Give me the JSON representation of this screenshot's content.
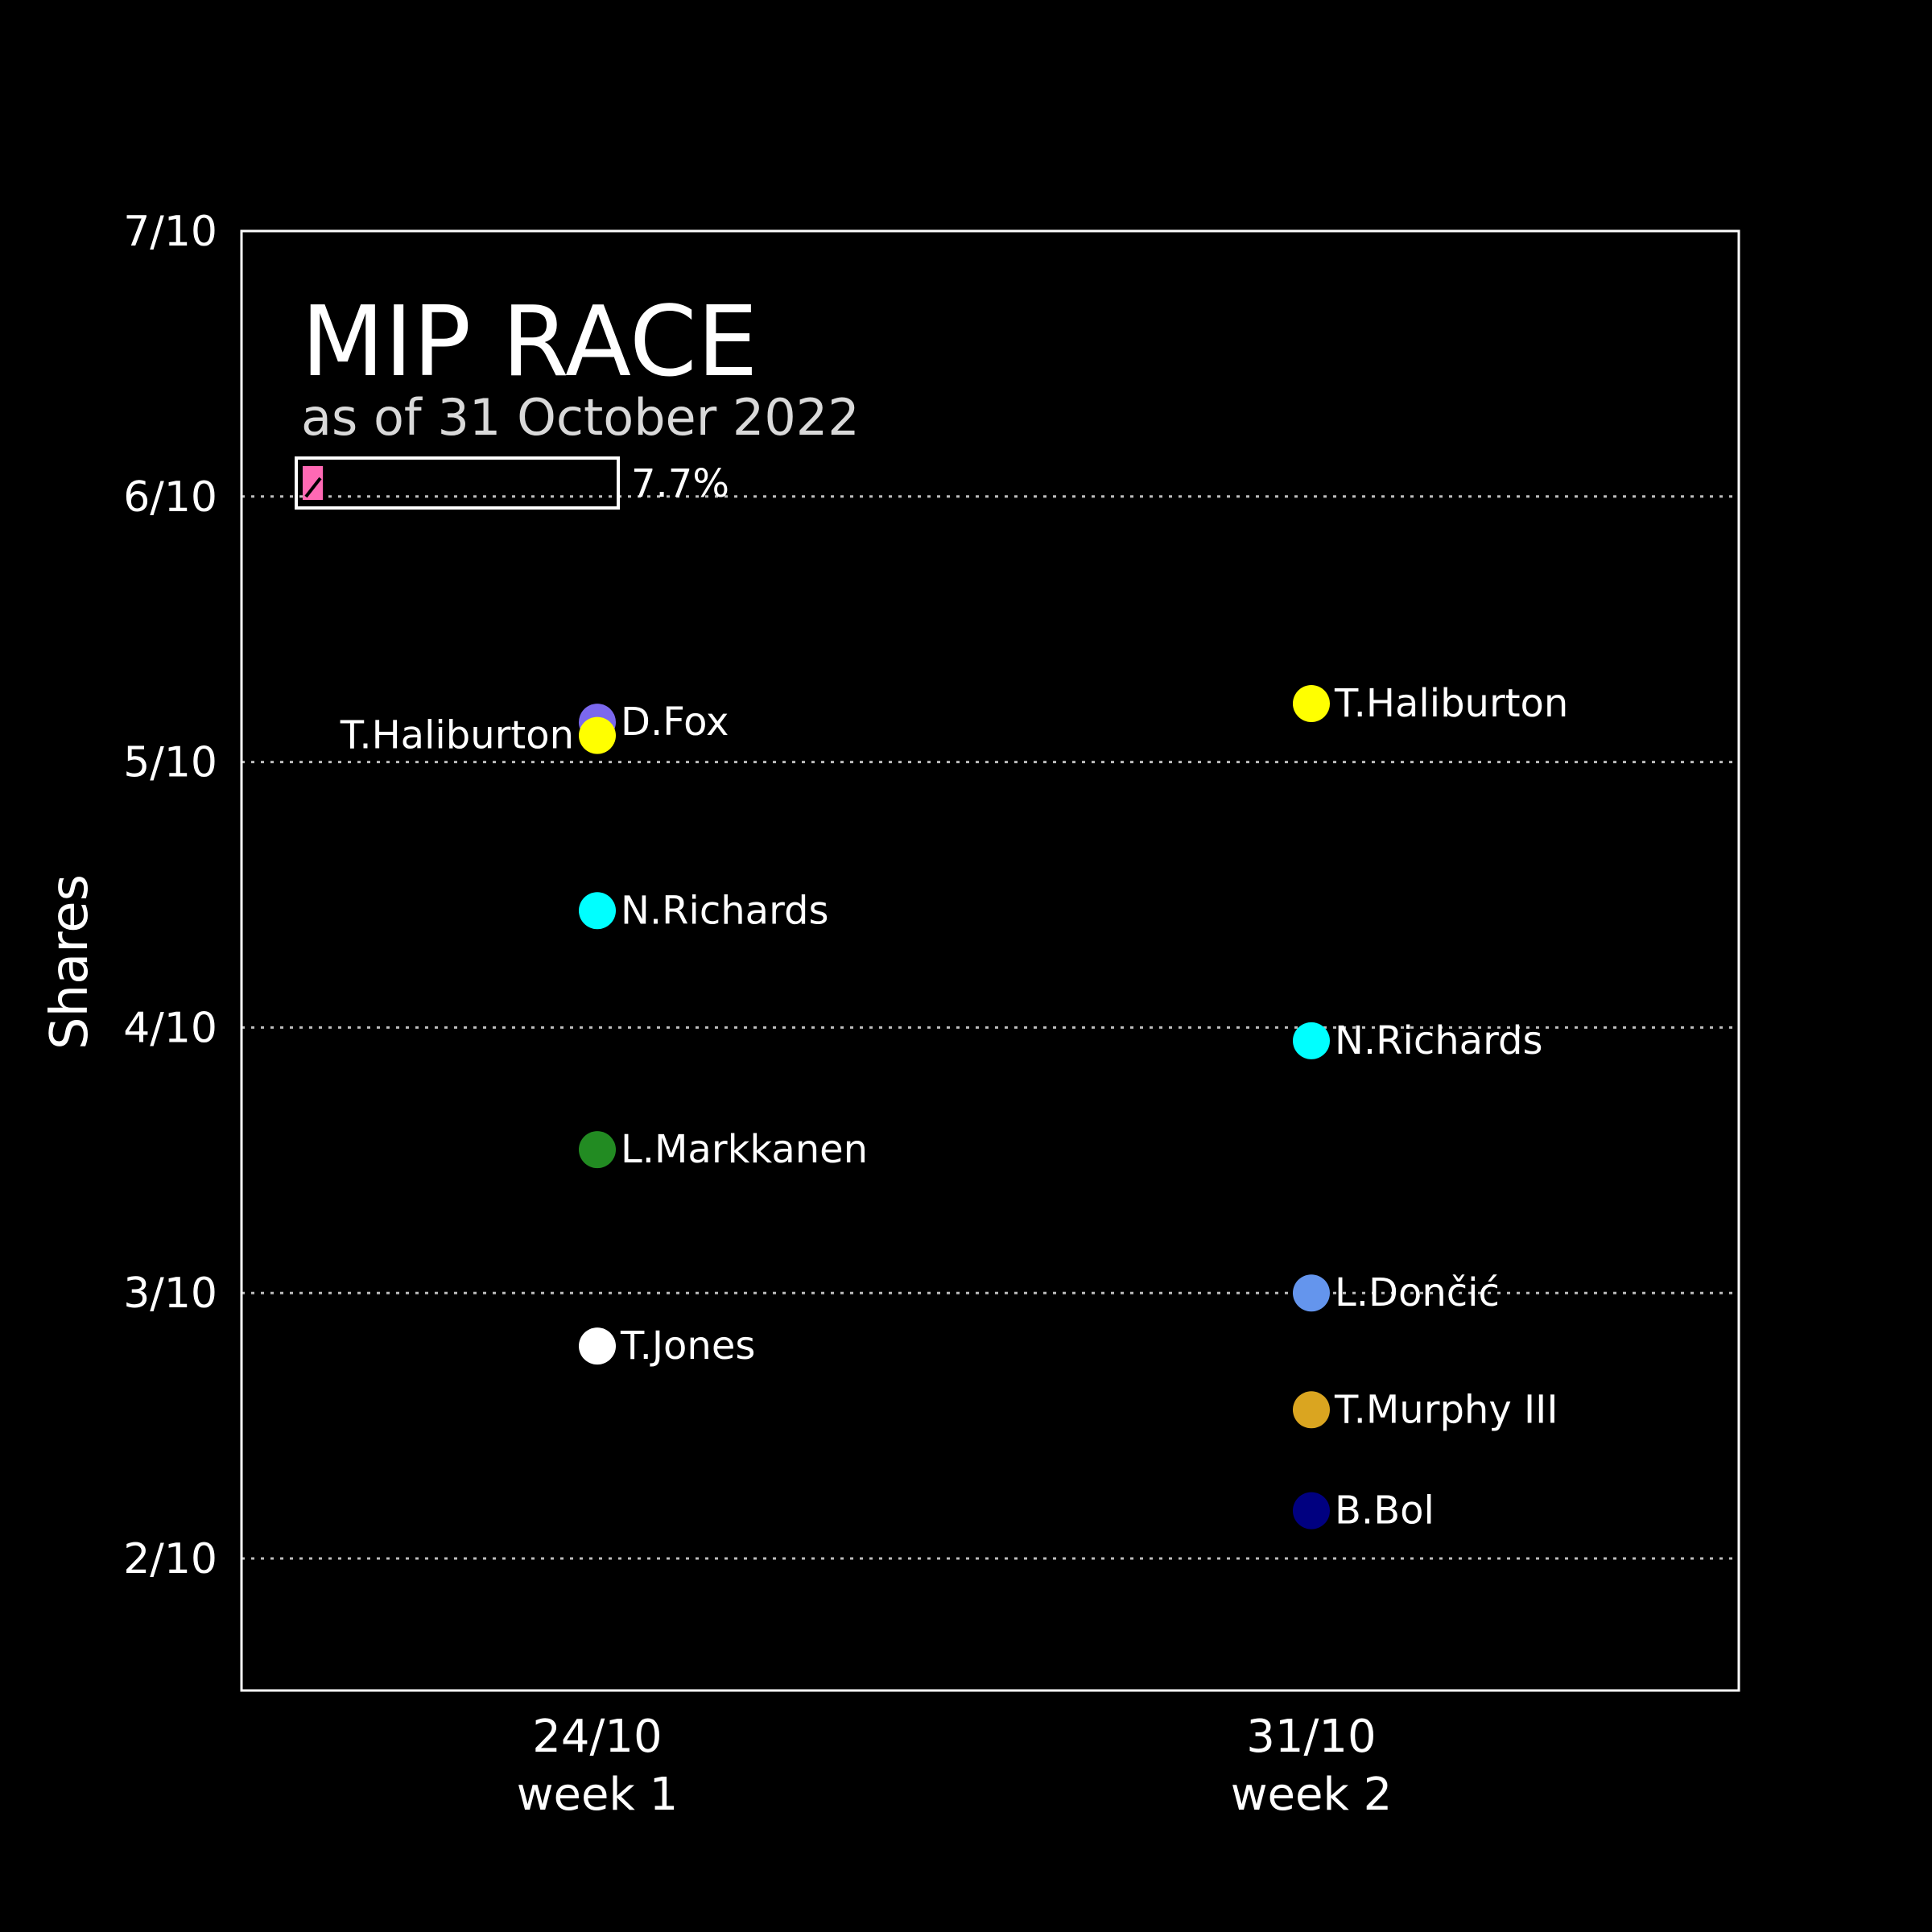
{
  "chart_data": {
    "type": "scatter",
    "title": "MIP RACE",
    "subtitle": "as of 31 October 2022",
    "ylabel": "Shares",
    "xlabel": "",
    "ylim": [
      0.15,
      0.7
    ],
    "y_ticks": [
      0.2,
      0.3,
      0.4,
      0.5,
      0.6,
      0.7
    ],
    "y_tick_labels": [
      "2/10",
      "3/10",
      "4/10",
      "5/10",
      "6/10",
      "7/10"
    ],
    "grid": "horizontal dotted",
    "x_categories": [
      {
        "date": "24/10",
        "week": "week 1"
      },
      {
        "date": "31/10",
        "week": "week 2"
      }
    ],
    "season_progress": {
      "value": 0.077,
      "label": "7.7%"
    },
    "points": [
      {
        "week_index": 0,
        "player": "D.Fox",
        "share": 0.515,
        "color": "#7b68ee",
        "label_side": "right"
      },
      {
        "week_index": 0,
        "player": "T.Haliburton",
        "share": 0.51,
        "color": "#ffff00",
        "label_side": "left"
      },
      {
        "week_index": 0,
        "player": "N.Richards",
        "share": 0.444,
        "color": "#00ffff",
        "label_side": "right"
      },
      {
        "week_index": 0,
        "player": "L.Markkanen",
        "share": 0.354,
        "color": "#228b22",
        "label_side": "right"
      },
      {
        "week_index": 0,
        "player": "T.Jones",
        "share": 0.28,
        "color": "#ffffff",
        "label_side": "right"
      },
      {
        "week_index": 1,
        "player": "T.Haliburton",
        "share": 0.522,
        "color": "#ffff00",
        "label_side": "right"
      },
      {
        "week_index": 1,
        "player": "N.Richards",
        "share": 0.395,
        "color": "#00ffff",
        "label_side": "right"
      },
      {
        "week_index": 1,
        "player": "L.Dončić",
        "share": 0.3,
        "color": "#6495ed",
        "label_side": "right"
      },
      {
        "week_index": 1,
        "player": "T.Murphy III",
        "share": 0.256,
        "color": "#daa520",
        "label_side": "right"
      },
      {
        "week_index": 1,
        "player": "B.Bol",
        "share": 0.218,
        "color": "#000080",
        "label_side": "right"
      }
    ]
  }
}
